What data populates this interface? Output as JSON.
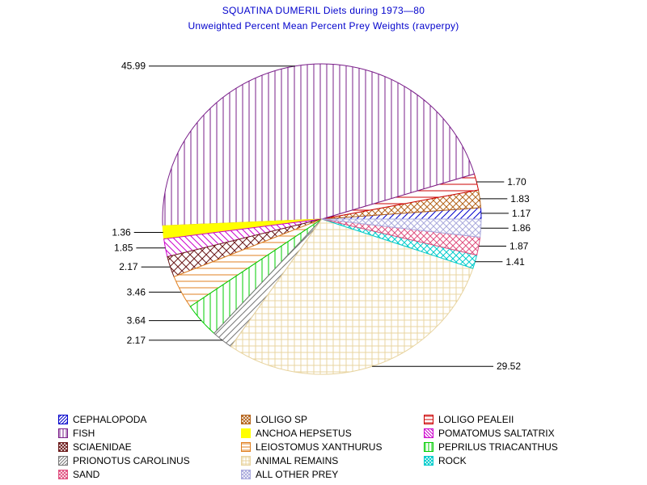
{
  "chart_data": {
    "type": "pie",
    "title": "SQUATINA DUMERIL Diets during 1973—80",
    "subtitle": "Unweighted Percent Mean Percent Prey  Weights (ravperpy)",
    "slices": [
      {
        "name": "CEPHALOPODA",
        "value": 1.17,
        "label": "1.17",
        "color": "#0000cc",
        "pattern": "diag-fwd"
      },
      {
        "name": "LOLIGO SP",
        "value": 1.83,
        "label": "1.83",
        "color": "#b5651d",
        "pattern": "crosshatch"
      },
      {
        "name": "LOLIGO PEALEII",
        "value": 1.7,
        "label": "1.70",
        "color": "#cc0000",
        "pattern": "hlines"
      },
      {
        "name": "FISH",
        "value": 45.99,
        "label": "45.99",
        "color": "#7a1f8a",
        "pattern": "vlines"
      },
      {
        "name": "ANCHOA HEPSETUS",
        "value": 1.36,
        "label": "1.36",
        "color": "#ffff00",
        "pattern": "solid"
      },
      {
        "name": "POMATOMUS SALTATRIX",
        "value": 1.85,
        "label": "1.85",
        "color": "#cc00cc",
        "pattern": "diag-back"
      },
      {
        "name": "SCIAENIDAE",
        "value": 2.17,
        "label": "2.17",
        "color": "#6b1a1a",
        "pattern": "crosshatch-dense"
      },
      {
        "name": "LEIOSTOMUS XANTHURUS",
        "value": 3.46,
        "label": "3.46",
        "color": "#e08020",
        "pattern": "hlines"
      },
      {
        "name": "PEPRILUS TRIACANTHUS",
        "value": 3.64,
        "label": "3.64",
        "color": "#00cc00",
        "pattern": "vlines"
      },
      {
        "name": "PRIONOTUS CAROLINUS",
        "value": 2.17,
        "label": "2.17",
        "color": "#777777",
        "pattern": "diag-fwd"
      },
      {
        "name": "ANIMAL REMAINS",
        "value": 29.52,
        "label": "29.52",
        "color": "#e8d4a0",
        "pattern": "grid"
      },
      {
        "name": "ROCK",
        "value": 1.41,
        "label": "1.41",
        "color": "#00cccc",
        "pattern": "crosshatch"
      },
      {
        "name": "SAND",
        "value": 1.87,
        "label": "1.87",
        "color": "#e05080",
        "pattern": "crosshatch"
      },
      {
        "name": "ALL OTHER PREY",
        "value": 1.86,
        "label": "1.86",
        "color": "#aaaadd",
        "pattern": "crosshatch"
      }
    ],
    "legend": [
      "CEPHALOPODA",
      "LOLIGO SP",
      "LOLIGO PEALEII",
      "FISH",
      "ANCHOA HEPSETUS",
      "POMATOMUS SALTATRIX",
      "SCIAENIDAE",
      "LEIOSTOMUS XANTHURUS",
      "PEPRILUS TRIACANTHUS",
      "PRIONOTUS CAROLINUS",
      "ANIMAL REMAINS",
      "ROCK",
      "SAND",
      "ALL OTHER PREY"
    ],
    "legend_placement": "bottom",
    "label_placement": "outside with leader lines"
  }
}
